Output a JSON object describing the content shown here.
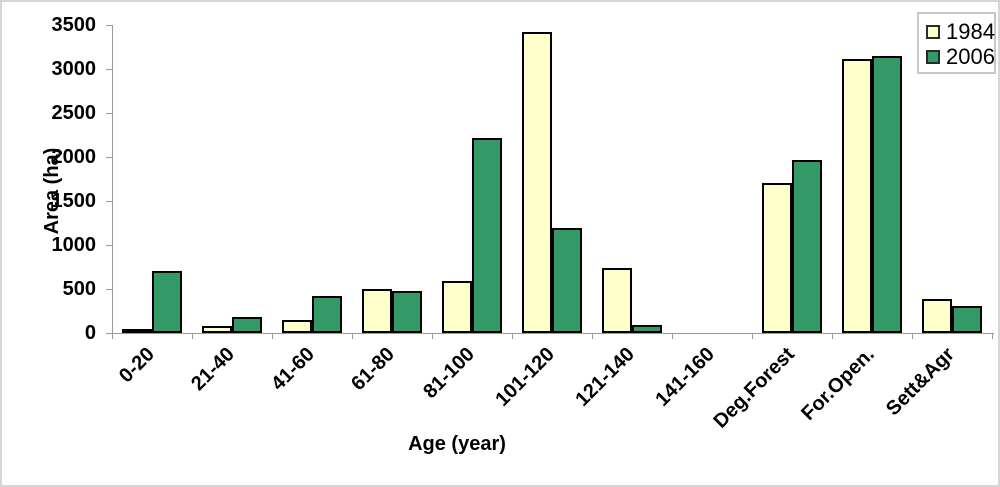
{
  "chart_data": {
    "type": "bar",
    "title": "",
    "xlabel": "Age (year)",
    "ylabel": "Area (ha)",
    "categories": [
      "0-20",
      "21-40",
      "41-60",
      "61-80",
      "81-100",
      "101-120",
      "121-140",
      "141-160",
      "Deg.Forest",
      "For.Open.",
      "Sett&Agr"
    ],
    "series": [
      {
        "name": "1984",
        "color": "#FFFFCC",
        "values": [
          50,
          85,
          150,
          500,
          590,
          3420,
          740,
          0,
          1700,
          3110,
          390
        ]
      },
      {
        "name": "2006",
        "color": "#339966",
        "values": [
          700,
          180,
          420,
          475,
          2220,
          1190,
          90,
          0,
          1970,
          3150,
          310
        ]
      }
    ],
    "ylim": [
      0,
      3500
    ],
    "ytick_step": 500,
    "grid": false,
    "legend_position": "top-right"
  },
  "axes": {
    "y_tick_labels": [
      "0",
      "500",
      "1000",
      "1500",
      "2000",
      "2500",
      "3000",
      "3500"
    ]
  },
  "colors": {
    "axis_line": "#9a9a9a",
    "bar_border": "#000000",
    "chart_border": "#d6d6d6",
    "legend_border": "#c6c6c6",
    "text": "#000000"
  }
}
